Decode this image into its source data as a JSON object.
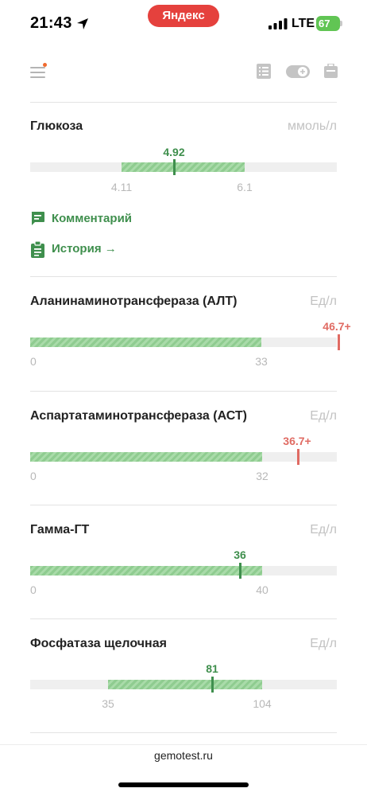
{
  "status_bar": {
    "time": "21:43",
    "carrier_pill": "Яндекс",
    "network": "LTE",
    "battery": "67"
  },
  "toolbar": {
    "icons": [
      "menu-icon",
      "list-icon",
      "toggle-icon",
      "case-icon"
    ]
  },
  "analytes": [
    {
      "name": "Глюкоза",
      "unit": "ммоль/л",
      "value": "4.92",
      "range_low": "4.11",
      "range_high": "6.1",
      "status": "normal"
    },
    {
      "name": "Аланинаминотрансфераза (АЛТ)",
      "unit": "Ед/л",
      "value": "46.7+",
      "range_low": "0",
      "range_high": "33",
      "status": "high"
    },
    {
      "name": "Аспартатаминотрансфераза (АСТ)",
      "unit": "Ед/л",
      "value": "36.7+",
      "range_low": "0",
      "range_high": "32",
      "status": "high"
    },
    {
      "name": "Гамма-ГТ",
      "unit": "Ед/л",
      "value": "36",
      "range_low": "0",
      "range_high": "40",
      "status": "normal"
    },
    {
      "name": "Фосфатаза щелочная",
      "unit": "Ед/л",
      "value": "81",
      "range_low": "35",
      "range_high": "104",
      "status": "normal"
    }
  ],
  "links": {
    "comment": "Комментарий",
    "history": "История →"
  },
  "colors": {
    "accent_green": "#3f8f4d",
    "norm_green": "#8fcc90",
    "alert_red": "#e06b63",
    "yandex_red": "#e5413d"
  },
  "footer": {
    "url": "gemotest.ru"
  }
}
